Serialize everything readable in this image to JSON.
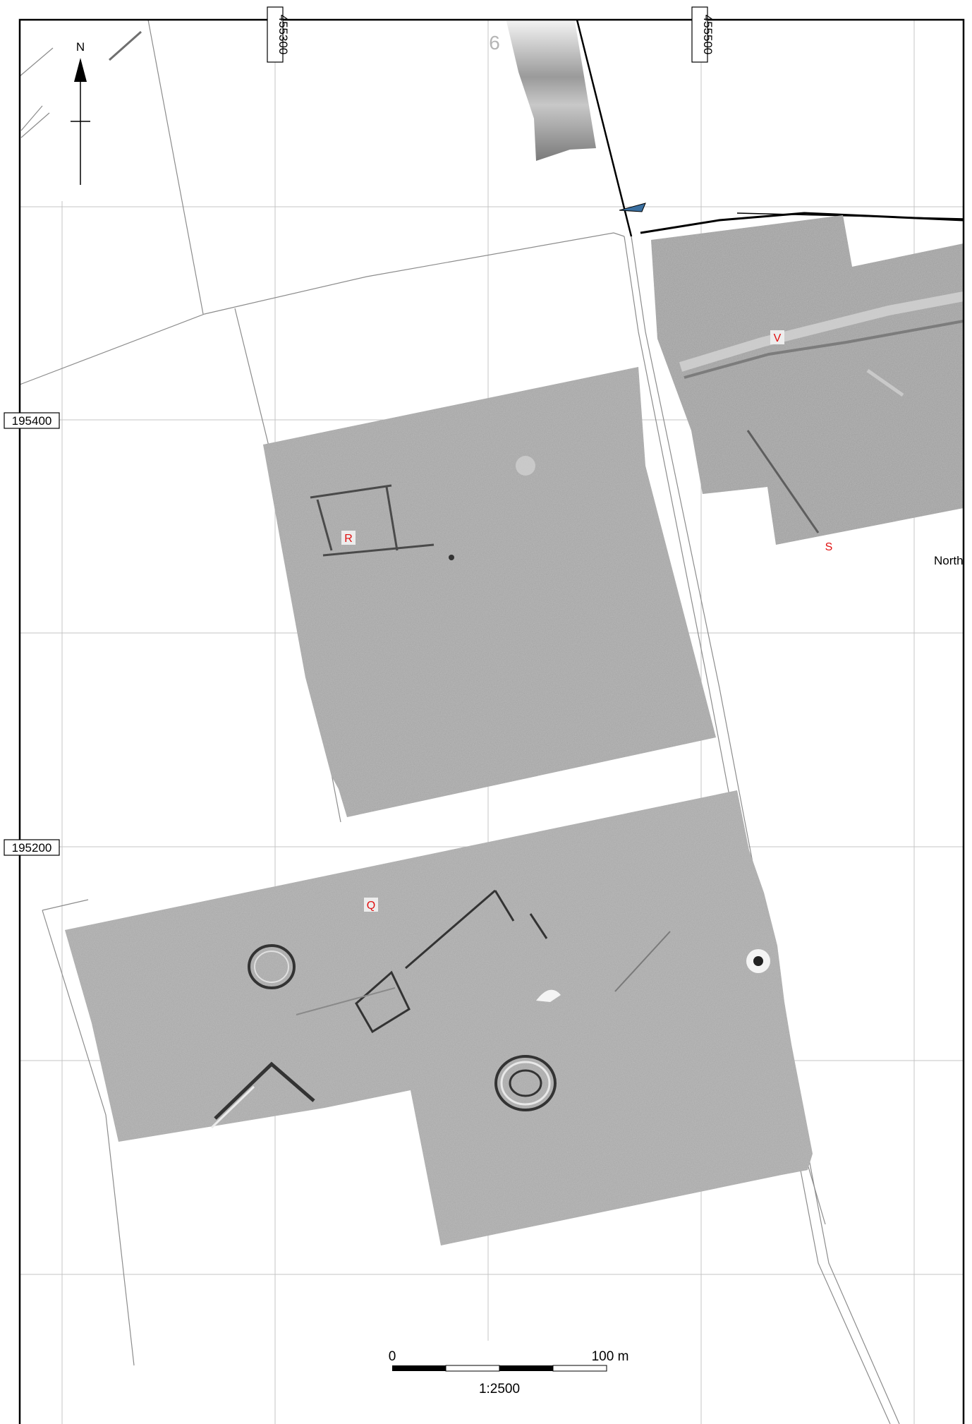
{
  "map": {
    "north_label": "N",
    "grid": {
      "easting_labels": [
        "455300",
        "455500"
      ],
      "northing_labels": [
        "195400",
        "195200"
      ]
    },
    "plot_number": "6",
    "feature_labels": {
      "r": "R",
      "v": "V",
      "s": "S",
      "q": "Q"
    },
    "partial_label": "North",
    "scale": {
      "start": "0",
      "end": "100 m",
      "ratio": "1:2500"
    },
    "colors": {
      "frame": "#000000",
      "grid": "#bdbdbd",
      "survey": "#9c9c9c",
      "label": "#e01010"
    }
  }
}
